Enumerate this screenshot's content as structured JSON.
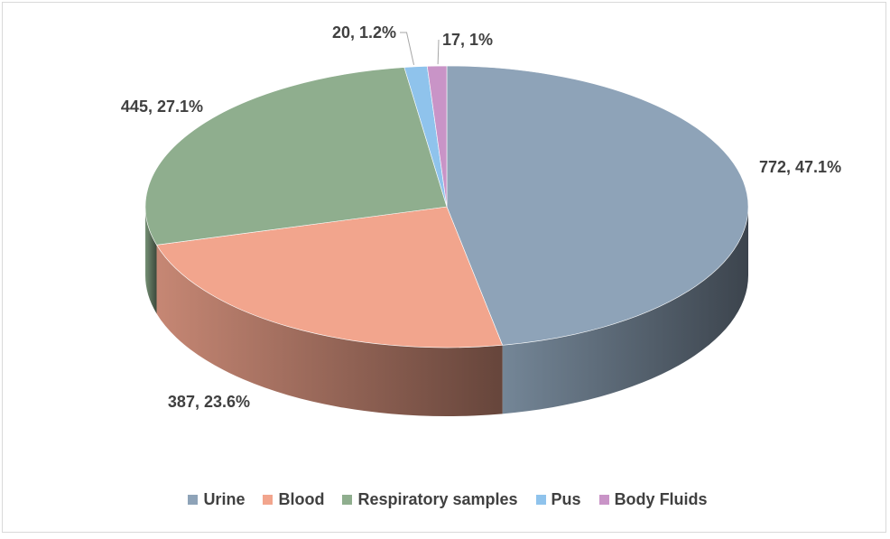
{
  "chart_data": {
    "type": "pie",
    "style": "3d",
    "title": "",
    "slices": [
      {
        "name": "Urine",
        "value": 772,
        "percent": "47.1%",
        "label": "772, 47.1%",
        "color": "#8ea3b8"
      },
      {
        "name": "Blood",
        "value": 387,
        "percent": "23.6%",
        "label": "387, 23.6%",
        "color": "#f2a58d"
      },
      {
        "name": "Respiratory samples",
        "value": 445,
        "percent": "27.1%",
        "label": "445, 27.1%",
        "color": "#8fae8e"
      },
      {
        "name": "Pus",
        "value": 20,
        "percent": "1.2%",
        "label": "20, 1.2%",
        "color": "#8fc3ec"
      },
      {
        "name": "Body Fluids",
        "value": 17,
        "percent": "1%",
        "label": "17, 1%",
        "color": "#c994c7"
      }
    ],
    "legend_position": "bottom"
  }
}
